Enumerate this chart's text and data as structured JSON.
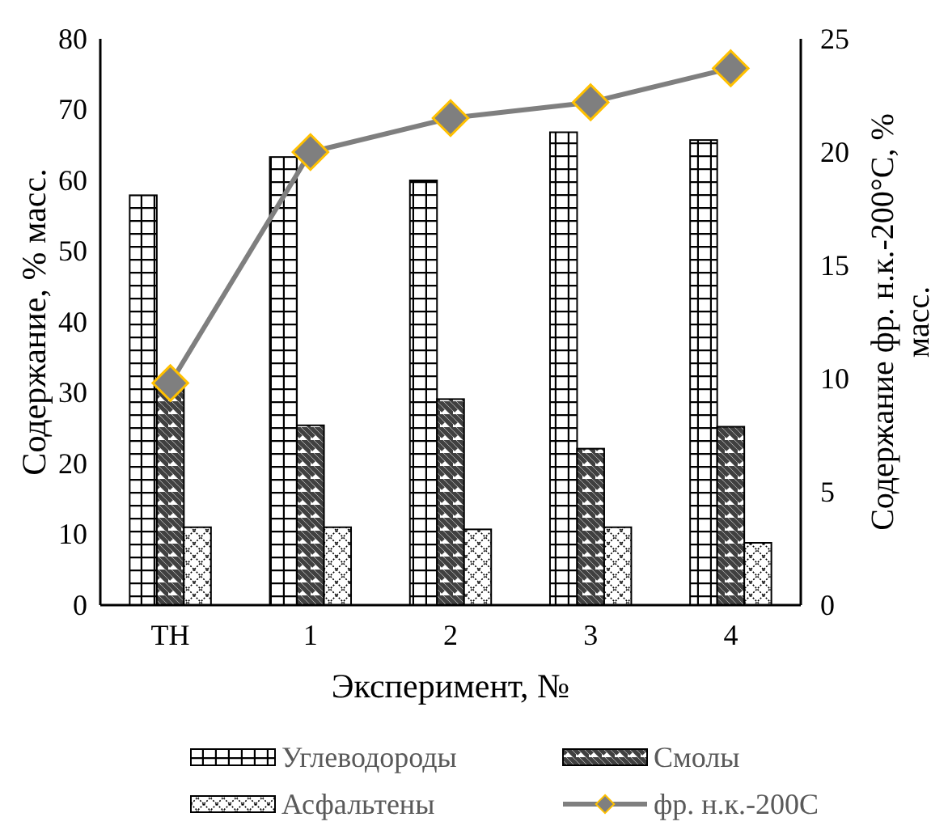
{
  "chart_data": {
    "type": "bar",
    "xlabel": "Эксперимент, №",
    "ylabel": "Содержание, % масс.",
    "y2label": "Содержание фр. н.к.-200°С, % масс.",
    "categories": [
      "ТН",
      "1",
      "2",
      "3",
      "4"
    ],
    "series": [
      {
        "name": "Углеводороды",
        "color": "#000000",
        "values": [
          57.9,
          63.3,
          60.0,
          66.8,
          65.7
        ]
      },
      {
        "name": "Смолы",
        "color": "#000000",
        "values": [
          30.6,
          25.4,
          29.1,
          22.1,
          25.2
        ]
      },
      {
        "name": "Асфальтены",
        "color": "#000000",
        "values": [
          11.0,
          11.0,
          10.7,
          11.0,
          8.8
        ]
      },
      {
        "name": "фр. н.к.-200С",
        "type": "line",
        "axis": "y2",
        "color": "#7f7f7f",
        "marker": "diamond",
        "values": [
          9.8,
          20.0,
          21.5,
          22.2,
          23.7
        ]
      }
    ],
    "ylim": [
      0,
      80
    ],
    "yticks": [
      0,
      10,
      20,
      30,
      40,
      50,
      60,
      70,
      80
    ],
    "y2lim": [
      0,
      25
    ],
    "y2ticks": [
      0,
      5,
      10,
      15,
      20,
      25
    ],
    "grid": false,
    "legend": "bottom"
  }
}
